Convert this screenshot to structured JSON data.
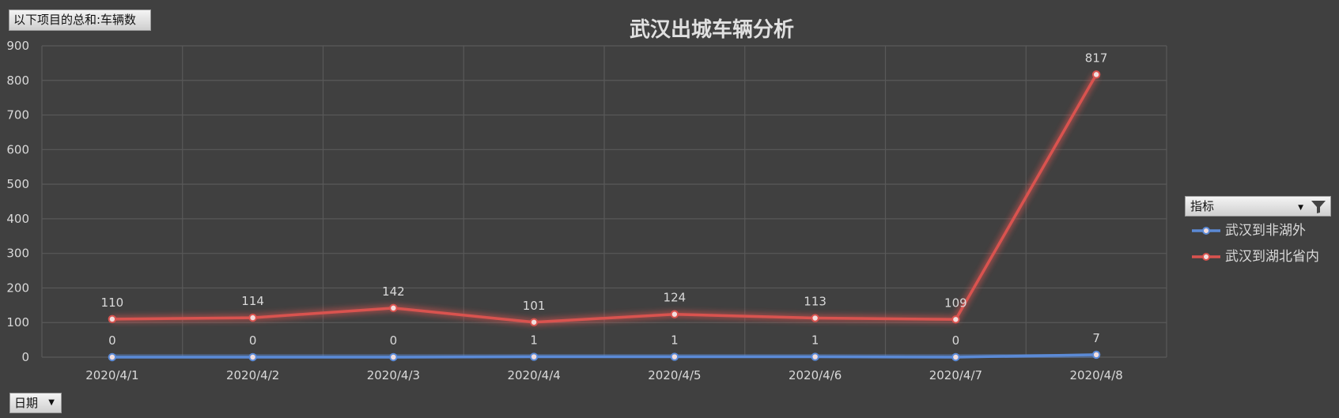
{
  "value_field_button": {
    "label": "以下项目的总和:车辆数"
  },
  "axis_field_button": {
    "label": "日期"
  },
  "legend_field_button": {
    "label": "指标"
  },
  "colors": {
    "background": "#404040",
    "gridline": "#595959",
    "text": "#d9d9d9",
    "series_blue": "#5b8ad6",
    "series_red": "#d9534f"
  },
  "chart_data": {
    "type": "line",
    "title": "武汉出城车辆分析",
    "xlabel": "",
    "ylabel": "",
    "categories": [
      "2020/4/1",
      "2020/4/2",
      "2020/4/3",
      "2020/4/4",
      "2020/4/5",
      "2020/4/6",
      "2020/4/7",
      "2020/4/8"
    ],
    "yticks": [
      0,
      100,
      200,
      300,
      400,
      500,
      600,
      700,
      800,
      900
    ],
    "ylim": [
      0,
      900
    ],
    "grid": true,
    "legend_position": "right",
    "series": [
      {
        "name": "武汉到非湖外",
        "color": "#5b8ad6",
        "values": [
          0,
          0,
          0,
          1,
          1,
          1,
          0,
          7
        ]
      },
      {
        "name": "武汉到湖北省内",
        "color": "#d9534f",
        "values": [
          110,
          114,
          142,
          101,
          124,
          113,
          109,
          817
        ]
      }
    ]
  }
}
